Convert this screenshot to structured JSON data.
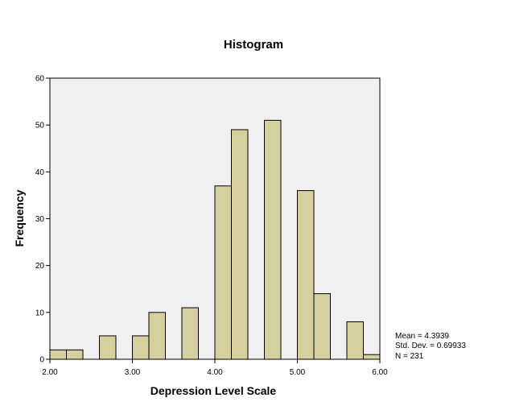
{
  "chart_data": {
    "type": "bar",
    "title": "Histogram",
    "xlabel": "Depression Level Scale",
    "ylabel": "Frequency",
    "xlim": [
      2.0,
      6.0
    ],
    "ylim": [
      0,
      60
    ],
    "x_ticks": [
      "2.00",
      "3.00",
      "4.00",
      "5.00",
      "6.00"
    ],
    "y_ticks": [
      "0",
      "10",
      "20",
      "30",
      "40",
      "50",
      "60"
    ],
    "bin_width": 0.2,
    "bins": [
      {
        "start": 2.0,
        "value": 2
      },
      {
        "start": 2.2,
        "value": 2
      },
      {
        "start": 2.4,
        "value": 0
      },
      {
        "start": 2.6,
        "value": 5
      },
      {
        "start": 2.8,
        "value": 0
      },
      {
        "start": 3.0,
        "value": 5
      },
      {
        "start": 3.2,
        "value": 10
      },
      {
        "start": 3.4,
        "value": 0
      },
      {
        "start": 3.6,
        "value": 11
      },
      {
        "start": 3.8,
        "value": 0
      },
      {
        "start": 4.0,
        "value": 37
      },
      {
        "start": 4.2,
        "value": 49
      },
      {
        "start": 4.4,
        "value": 0
      },
      {
        "start": 4.6,
        "value": 51
      },
      {
        "start": 4.8,
        "value": 0
      },
      {
        "start": 5.0,
        "value": 36
      },
      {
        "start": 5.2,
        "value": 14
      },
      {
        "start": 5.4,
        "value": 0
      },
      {
        "start": 5.6,
        "value": 8
      },
      {
        "start": 5.8,
        "value": 1
      }
    ],
    "stats": {
      "mean": "Mean = 4.3939",
      "std_dev": "Std. Dev. = 0.69933",
      "n": "N = 231"
    },
    "grid": false,
    "colors": {
      "bar_fill": "#d6d09f",
      "bar_stroke": "#000000",
      "plot_background": "#f0f0f0"
    }
  }
}
